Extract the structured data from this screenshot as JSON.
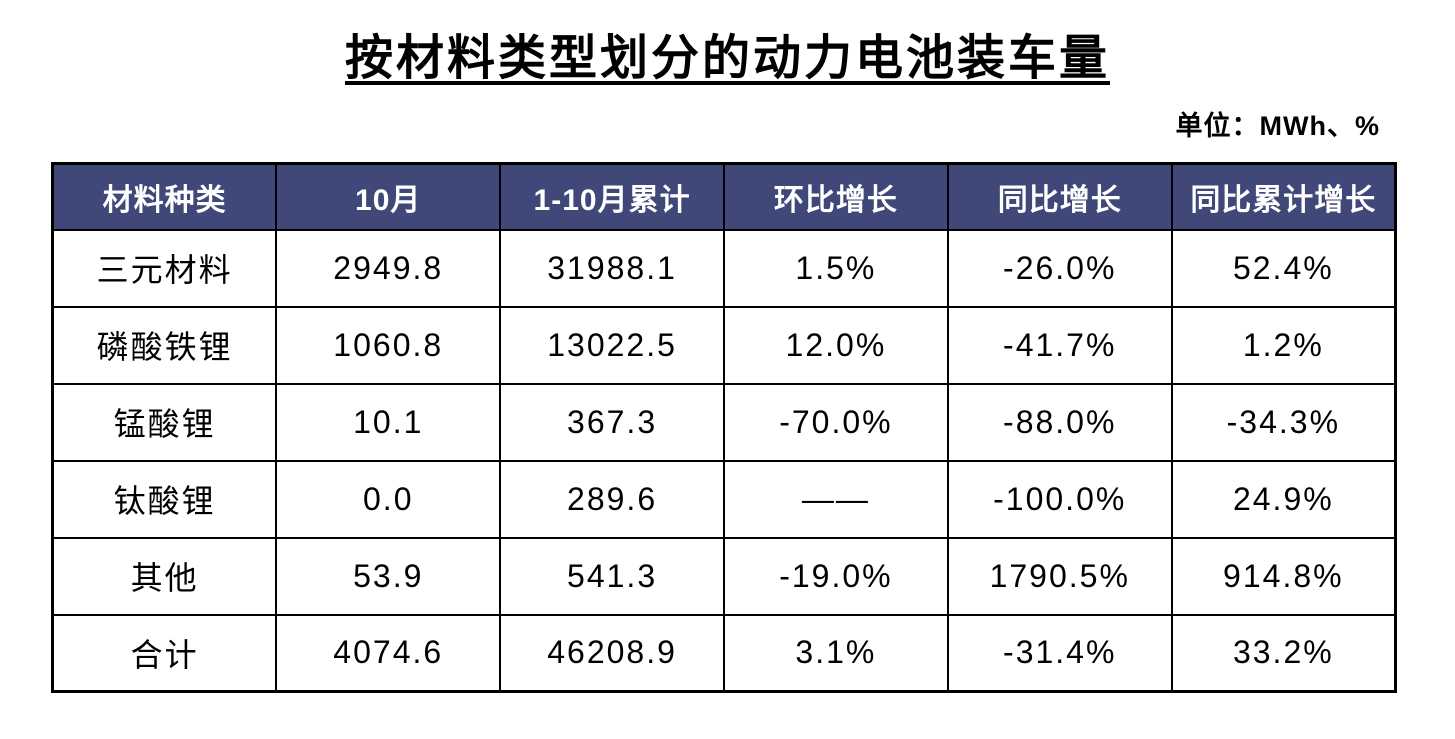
{
  "page": {
    "title": "按材料类型划分的动力电池装车量",
    "unit_label": "单位：MWh、%"
  },
  "table": {
    "headers": [
      "材料种类",
      "10月",
      "1-10月累计",
      "环比增长",
      "同比增长",
      "同比累计增长"
    ],
    "rows": [
      [
        "三元材料",
        "2949.8",
        "31988.1",
        "1.5%",
        "-26.0%",
        "52.4%"
      ],
      [
        "磷酸铁锂",
        "1060.8",
        "13022.5",
        "12.0%",
        "-41.7%",
        "1.2%"
      ],
      [
        "锰酸锂",
        "10.1",
        "367.3",
        "-70.0%",
        "-88.0%",
        "-34.3%"
      ],
      [
        "钛酸锂",
        "0.0",
        "289.6",
        "——",
        "-100.0%",
        "24.9%"
      ],
      [
        "其他",
        "53.9",
        "541.3",
        "-19.0%",
        "1790.5%",
        "914.8%"
      ],
      [
        "合计",
        "4074.6",
        "46208.9",
        "3.1%",
        "-31.4%",
        "33.2%"
      ]
    ]
  },
  "colors": {
    "header_background": "#3F4878",
    "header_text": "#FFFFFF",
    "body_text": "#000000",
    "border": "#000000",
    "page_background": "#FFFFFF"
  },
  "chart_data": {
    "type": "table",
    "title": "按材料类型划分的动力电池装车量",
    "unit": "MWh、%",
    "categories": [
      "三元材料",
      "磷酸铁锂",
      "锰酸锂",
      "钛酸锂",
      "其他",
      "合计"
    ],
    "series": [
      {
        "name": "10月",
        "unit": "MWh",
        "values": [
          2949.8,
          1060.8,
          10.1,
          0.0,
          53.9,
          4074.6
        ]
      },
      {
        "name": "1-10月累计",
        "unit": "MWh",
        "values": [
          31988.1,
          13022.5,
          367.3,
          289.6,
          541.3,
          46208.9
        ]
      },
      {
        "name": "环比增长",
        "unit": "%",
        "values": [
          1.5,
          12.0,
          -70.0,
          null,
          -19.0,
          3.1
        ]
      },
      {
        "name": "同比增长",
        "unit": "%",
        "values": [
          -26.0,
          -41.7,
          -88.0,
          -100.0,
          1790.5,
          -31.4
        ]
      },
      {
        "name": "同比累计增长",
        "unit": "%",
        "values": [
          52.4,
          1.2,
          -34.3,
          24.9,
          914.8,
          33.2
        ]
      }
    ]
  }
}
